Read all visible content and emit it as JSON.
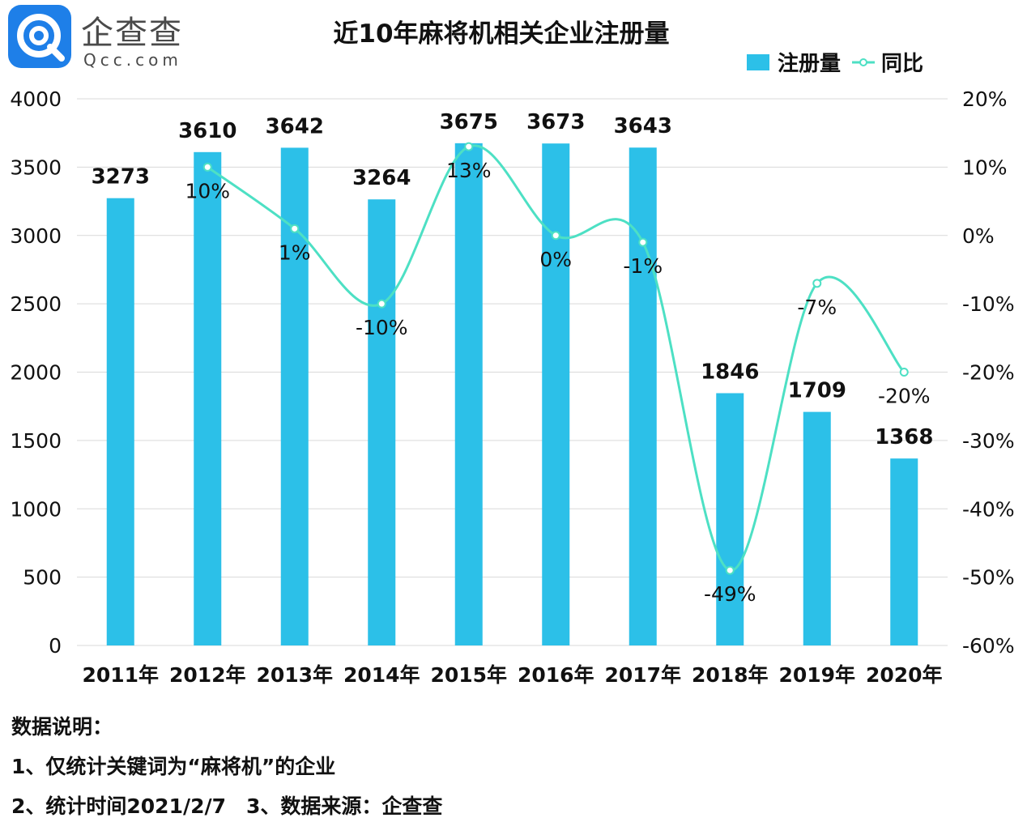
{
  "logo": {
    "name": "企查查",
    "domain": "Qcc.com"
  },
  "colors": {
    "bar": "#2cc0e8",
    "line": "#4de0c4",
    "grid": "#d9d9d9",
    "logo": "#1e7fe8"
  },
  "chart_data": {
    "type": "bar",
    "title": "近10年麻将机相关企业注册量",
    "legend_placement": "top-right",
    "grid": true,
    "categories": [
      "2011年",
      "2012年",
      "2013年",
      "2014年",
      "2015年",
      "2016年",
      "2017年",
      "2018年",
      "2019年",
      "2020年"
    ],
    "y_left": {
      "min": 0,
      "max": 4000,
      "ticks": [
        "0",
        "500",
        "1000",
        "1500",
        "2000",
        "2500",
        "3000",
        "3500",
        "4000"
      ]
    },
    "y_right": {
      "min": -60,
      "max": 20,
      "ticks": [
        "-60%",
        "-50%",
        "-40%",
        "-30%",
        "-20%",
        "-10%",
        "0%",
        "10%",
        "20%"
      ]
    },
    "series": [
      {
        "name": "注册量",
        "type": "bar",
        "axis": "left",
        "values": [
          3273,
          3610,
          3642,
          3264,
          3675,
          3673,
          3643,
          1846,
          1709,
          1368
        ],
        "labels": [
          "3273",
          "3610",
          "3642",
          "3264",
          "3675",
          "3673",
          "3643",
          "1846",
          "1709",
          "1368"
        ]
      },
      {
        "name": "同比",
        "type": "line",
        "axis": "right",
        "values": [
          null,
          10,
          1,
          -10,
          13,
          0,
          -1,
          -49,
          -7,
          -20
        ],
        "labels": [
          "",
          "10%",
          "1%",
          "-10%",
          "13%",
          "0%",
          "-1%",
          "-49%",
          "-7%",
          "-20%"
        ]
      }
    ]
  },
  "notes": {
    "heading": "数据说明：",
    "line1": "1、仅统计关键词为“麻将机”的企业",
    "line2": "2、统计时间2021/2/7　3、数据来源：企查查"
  }
}
